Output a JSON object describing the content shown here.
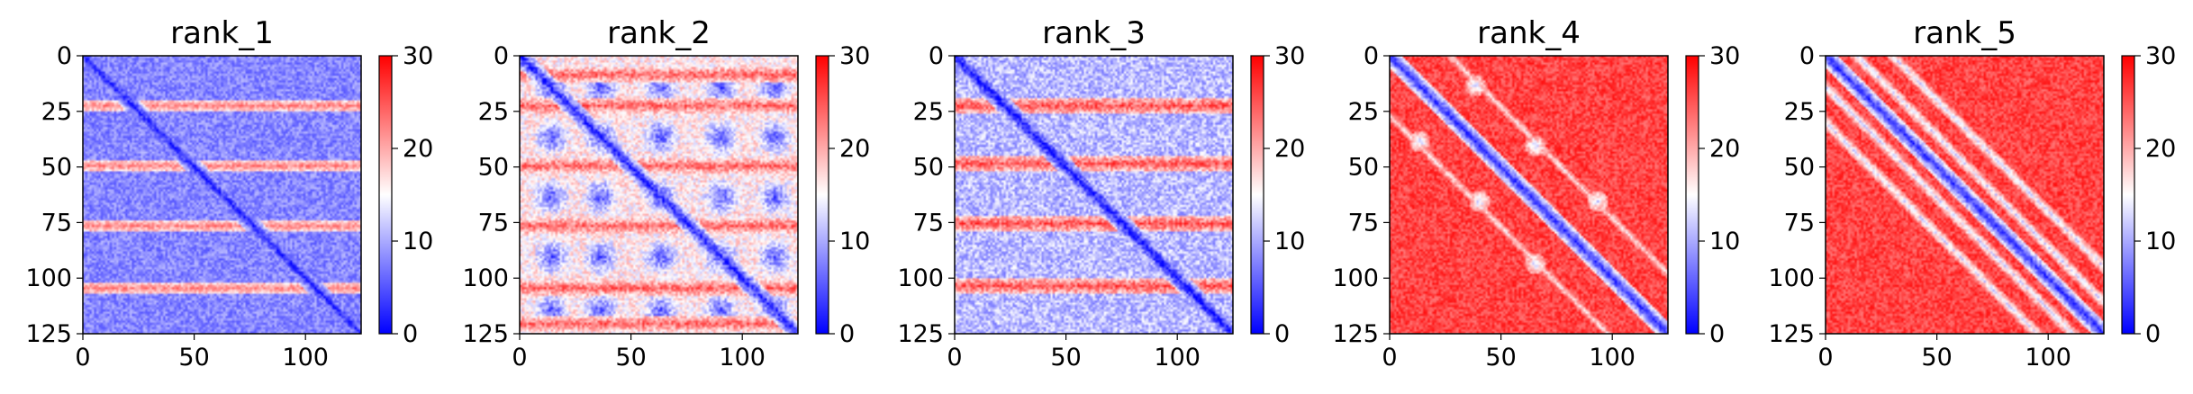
{
  "figure": {
    "layout": "1x5 heatmap panels, each with its own vertical colorbar on the right"
  },
  "chart_data": [
    {
      "type": "heatmap",
      "title": "rank_1",
      "x_ticks": [
        0,
        50,
        100
      ],
      "y_ticks": [
        0,
        25,
        50,
        75,
        100,
        125
      ],
      "xlim": [
        0,
        125
      ],
      "ylim": [
        125,
        0
      ],
      "matrix_size": 125,
      "colorbar": {
        "min": 0,
        "max": 30,
        "ticks": [
          0,
          10,
          20,
          30
        ],
        "colormap": "bwr"
      },
      "pattern": {
        "diagonal_value": 2,
        "background_value": 8,
        "hot_rows": [
          22,
          49,
          76,
          104
        ],
        "hot_row_value": 22,
        "hot_row_width": 2,
        "off_diagonals": [],
        "noise": 3
      }
    },
    {
      "type": "heatmap",
      "title": "rank_2",
      "x_ticks": [
        0,
        50,
        100
      ],
      "y_ticks": [
        0,
        25,
        50,
        75,
        100,
        125
      ],
      "xlim": [
        0,
        125
      ],
      "ylim": [
        125,
        0
      ],
      "matrix_size": 125,
      "colorbar": {
        "min": 0,
        "max": 30,
        "ticks": [
          0,
          10,
          20,
          30
        ],
        "colormap": "bwr"
      },
      "pattern": {
        "diagonal_value": 2,
        "background_value": 16,
        "hot_rows": [
          8,
          22,
          49,
          76,
          104,
          120
        ],
        "hot_row_value": 24,
        "hot_row_width": 3,
        "cold_blocks": [
          14,
          36,
          63,
          90,
          114
        ],
        "cold_block_value": 5,
        "off_diagonals": [],
        "noise": 4
      }
    },
    {
      "type": "heatmap",
      "title": "rank_3",
      "x_ticks": [
        0,
        50,
        100
      ],
      "y_ticks": [
        0,
        25,
        50,
        75,
        100,
        125
      ],
      "xlim": [
        0,
        125
      ],
      "ylim": [
        125,
        0
      ],
      "matrix_size": 125,
      "colorbar": {
        "min": 0,
        "max": 30,
        "ticks": [
          0,
          10,
          20,
          30
        ],
        "colormap": "bwr"
      },
      "pattern": {
        "diagonal_value": 1,
        "background_value": 11,
        "hot_rows": [
          22,
          48,
          75,
          103
        ],
        "hot_row_value": 25,
        "hot_row_width": 3,
        "off_diagonals": [],
        "noise": 4
      }
    },
    {
      "type": "heatmap",
      "title": "rank_4",
      "x_ticks": [
        0,
        50,
        100
      ],
      "y_ticks": [
        0,
        25,
        50,
        75,
        100,
        125
      ],
      "xlim": [
        0,
        125
      ],
      "ylim": [
        125,
        0
      ],
      "matrix_size": 125,
      "colorbar": {
        "min": 0,
        "max": 30,
        "ticks": [
          0,
          10,
          20,
          30
        ],
        "colormap": "bwr"
      },
      "pattern": {
        "diagonal_value": 3,
        "background_value": 26,
        "hot_rows": [],
        "off_diagonals": [
          27
        ],
        "off_diagonal_value": 17,
        "cool_spots": [
          [
            13,
            38
          ],
          [
            40,
            65
          ],
          [
            65,
            93
          ],
          [
            38,
            13
          ],
          [
            65,
            40
          ],
          [
            93,
            65
          ]
        ],
        "noise": 3
      }
    },
    {
      "type": "heatmap",
      "title": "rank_5",
      "x_ticks": [
        0,
        50,
        100
      ],
      "y_ticks": [
        0,
        25,
        50,
        75,
        100,
        125
      ],
      "xlim": [
        0,
        125
      ],
      "ylim": [
        125,
        0
      ],
      "matrix_size": 125,
      "colorbar": {
        "min": 0,
        "max": 30,
        "ticks": [
          0,
          10,
          20,
          30
        ],
        "colormap": "bwr"
      },
      "pattern": {
        "diagonal_value": 3,
        "background_value": 26,
        "hot_rows": [],
        "off_diagonals": [
          14,
          30
        ],
        "off_diagonal_value": 13,
        "noise": 3
      }
    }
  ]
}
